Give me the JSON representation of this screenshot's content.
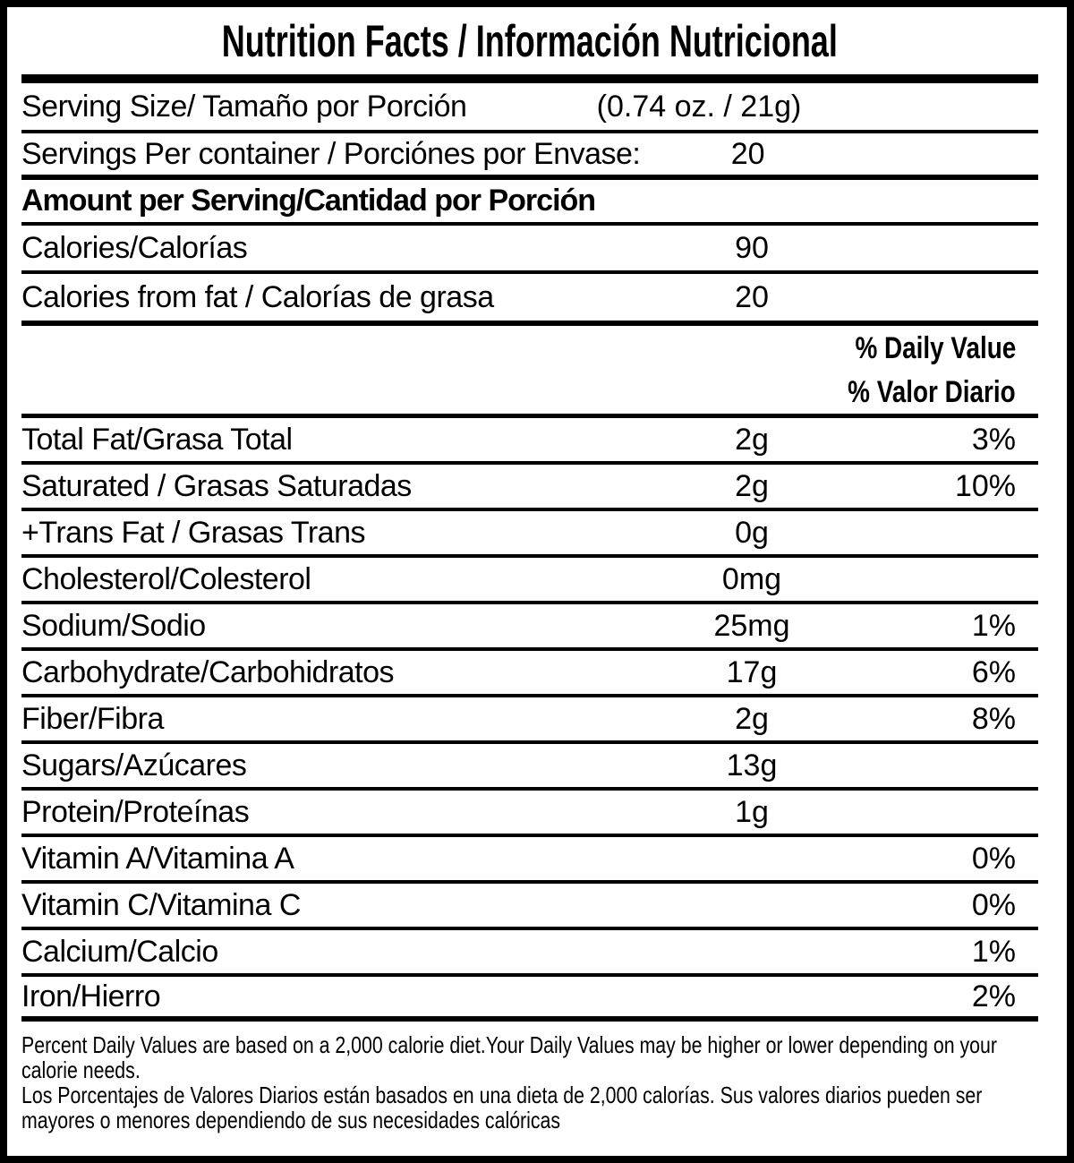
{
  "title": "Nutrition Facts / Información Nutricional",
  "serving": {
    "size_label": "Serving Size/ Tamaño por Porción",
    "size_value": "(0.74 oz. / 21g)",
    "per_container_label": "Servings Per container / Porciónes por Envase:",
    "per_container_value": "20"
  },
  "amount_header": "Amount per Serving/Cantidad por Porción",
  "calories": {
    "label": "Calories/Calorías",
    "value": "90"
  },
  "calories_from_fat": {
    "label": "Calories from fat / Calorías de grasa",
    "value": "20"
  },
  "daily_value_header": {
    "en": "% Daily Value",
    "es": "% Valor Diario"
  },
  "nutrients": [
    {
      "label": "Total Fat/Grasa Total",
      "amount": "2g",
      "dv": "3%"
    },
    {
      "label": "Saturated / Grasas Saturadas",
      "amount": "2g",
      "dv": "10%"
    },
    {
      "label": "+Trans Fat / Grasas Trans",
      "amount": "0g",
      "dv": ""
    },
    {
      "label": "Cholesterol/Colesterol",
      "amount": "0mg",
      "dv": ""
    },
    {
      "label": "Sodium/Sodio",
      "amount": "25mg",
      "dv": "1%"
    },
    {
      "label": "Carbohydrate/Carbohidratos",
      "amount": "17g",
      "dv": "6%"
    },
    {
      "label": "Fiber/Fibra",
      "amount": "2g",
      "dv": "8%"
    },
    {
      "label": "Sugars/Azúcares",
      "amount": "13g",
      "dv": ""
    },
    {
      "label": "Protein/Proteínas",
      "amount": "1g",
      "dv": ""
    },
    {
      "label": "Vitamin A/Vitamina A",
      "amount": "",
      "dv": "0%"
    },
    {
      "label": "Vitamin C/Vitamina C",
      "amount": "",
      "dv": "0%"
    },
    {
      "label": "Calcium/Calcio",
      "amount": "",
      "dv": "1%"
    },
    {
      "label": "Iron/Hierro",
      "amount": "",
      "dv": "2%"
    }
  ],
  "footnote": {
    "en_line1": "Percent Daily Values are based on a 2,000 calorie diet.Your Daily Values may be higher or lower depending on your",
    "en_line2": "calorie needs.",
    "es_line1": "Los Porcentajes de Valores Diarios están basados en una dieta de 2,000 calorías. Sus valores diarios pueden ser",
    "es_line2": "mayores o menores dependiendo de sus necesidades calóricas"
  },
  "colors": {
    "ink": "#000000",
    "background": "#ffffff"
  }
}
